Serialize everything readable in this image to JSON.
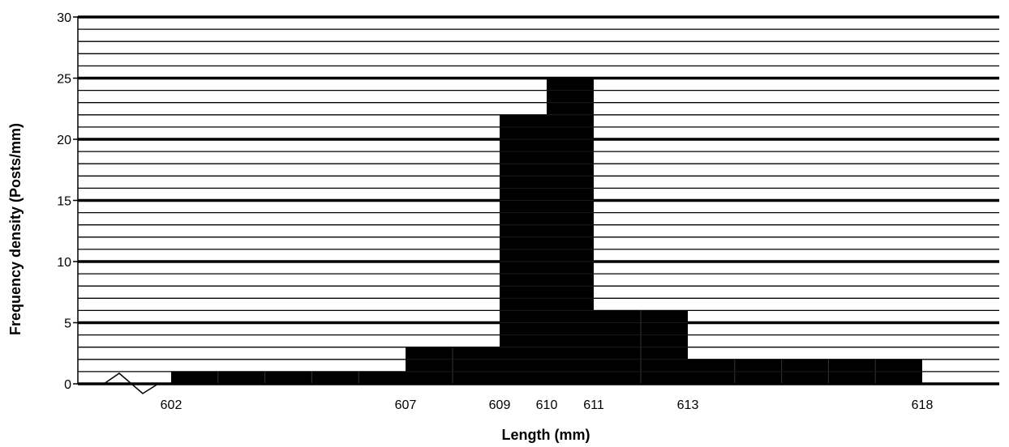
{
  "chart_data": {
    "type": "bar",
    "subtype": "histogram",
    "xlabel": "Length (mm)",
    "ylabel": "Frequency density (Posts/mm)",
    "ylim": [
      0,
      30
    ],
    "y_ticks": [
      0,
      5,
      10,
      15,
      20,
      25,
      30
    ],
    "x_tick_labels": [
      "602",
      "607",
      "609",
      "610",
      "611",
      "613",
      "618"
    ],
    "x_axis_break": true,
    "grid": true,
    "bins": [
      {
        "start": 602,
        "end": 607,
        "density": 1
      },
      {
        "start": 607,
        "end": 609,
        "density": 3
      },
      {
        "start": 609,
        "end": 610,
        "density": 22
      },
      {
        "start": 610,
        "end": 611,
        "density": 25
      },
      {
        "start": 611,
        "end": 613,
        "density": 6
      },
      {
        "start": 613,
        "end": 618,
        "density": 2
      }
    ],
    "colors": {
      "bar": "#000000",
      "grid": "#000000",
      "background": "#ffffff"
    }
  }
}
